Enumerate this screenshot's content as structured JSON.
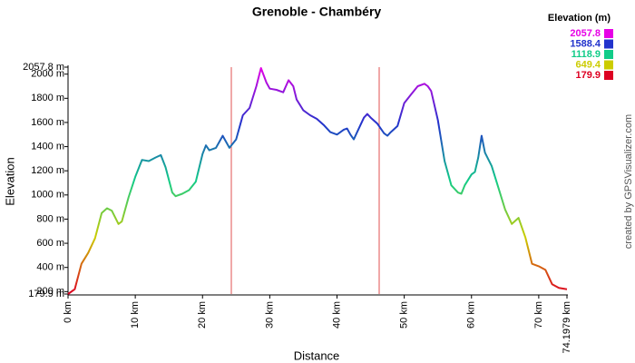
{
  "chart_data": {
    "type": "line",
    "title": "Grenoble - Chambéry",
    "x_label": "Distance",
    "y_label": "Elevation",
    "credit": "created by GPSVisualizer.com",
    "x": [
      0,
      1,
      2,
      3,
      4,
      5,
      5.8,
      6.5,
      7.5,
      8,
      9,
      10,
      11,
      12,
      13,
      13.8,
      14.5,
      15.5,
      16,
      17,
      18,
      19,
      20,
      20.5,
      21,
      22,
      23,
      24,
      25,
      26,
      27,
      28,
      28.7,
      29.5,
      30,
      31,
      32,
      32.8,
      33.5,
      34,
      35,
      36,
      37,
      38,
      39,
      40,
      41,
      41.5,
      42,
      42.5,
      43,
      44,
      44.5,
      45,
      46,
      47,
      47.5,
      48,
      49,
      50,
      51,
      52,
      53,
      53.5,
      54,
      55,
      56,
      57,
      58,
      58.5,
      59,
      60,
      60.5,
      61,
      61.5,
      62,
      63,
      64,
      65,
      66,
      67,
      68,
      69,
      70,
      71,
      72,
      73,
      74.1979
    ],
    "values": [
      180,
      220,
      430,
      520,
      640,
      850,
      890,
      870,
      760,
      780,
      980,
      1150,
      1290,
      1280,
      1310,
      1330,
      1230,
      1020,
      990,
      1010,
      1040,
      1110,
      1340,
      1410,
      1370,
      1390,
      1490,
      1390,
      1460,
      1660,
      1720,
      1900,
      2050,
      1930,
      1880,
      1870,
      1850,
      1950,
      1900,
      1790,
      1700,
      1660,
      1630,
      1580,
      1520,
      1500,
      1540,
      1550,
      1500,
      1460,
      1520,
      1640,
      1670,
      1640,
      1590,
      1510,
      1490,
      1520,
      1570,
      1760,
      1830,
      1900,
      1920,
      1900,
      1860,
      1620,
      1280,
      1080,
      1020,
      1010,
      1080,
      1170,
      1190,
      1310,
      1490,
      1350,
      1240,
      1060,
      880,
      760,
      810,
      650,
      430,
      410,
      380,
      260,
      230,
      220
    ],
    "xlim": [
      0,
      74.1979
    ],
    "ylim": [
      179.9,
      2057.8
    ],
    "xticks": [
      {
        "value": 0,
        "label": "0 km"
      },
      {
        "value": 10,
        "label": "10 km"
      },
      {
        "value": 20,
        "label": "20 km"
      },
      {
        "value": 30,
        "label": "30 km"
      },
      {
        "value": 40,
        "label": "40 km"
      },
      {
        "value": 50,
        "label": "50 km"
      },
      {
        "value": 60,
        "label": "60 km"
      },
      {
        "value": 70,
        "label": "70 km"
      },
      {
        "value": 74.1979,
        "label": "74.1979 km"
      }
    ],
    "yticks": [
      {
        "value": 179.9,
        "label": "179.9 m"
      },
      {
        "value": 200,
        "label": "200 m"
      },
      {
        "value": 400,
        "label": "400 m"
      },
      {
        "value": 600,
        "label": "600 m"
      },
      {
        "value": 800,
        "label": "800 m"
      },
      {
        "value": 1000,
        "label": "1000 m"
      },
      {
        "value": 1200,
        "label": "1200 m"
      },
      {
        "value": 1400,
        "label": "1400 m"
      },
      {
        "value": 1600,
        "label": "1600 m"
      },
      {
        "value": 1800,
        "label": "1800 m"
      },
      {
        "value": 2000,
        "label": "2000 m"
      },
      {
        "value": 2057.8,
        "label": "2057.8 m"
      }
    ],
    "legend": {
      "title": "Elevation (m)",
      "items": [
        {
          "value": 2057.8,
          "color": "#e600e6"
        },
        {
          "value": 1588.4,
          "color": "#2233cc"
        },
        {
          "value": 1118.9,
          "color": "#11cc88"
        },
        {
          "value": 649.4,
          "color": "#cccc00"
        },
        {
          "value": 179.9,
          "color": "#dd0022"
        }
      ]
    }
  }
}
